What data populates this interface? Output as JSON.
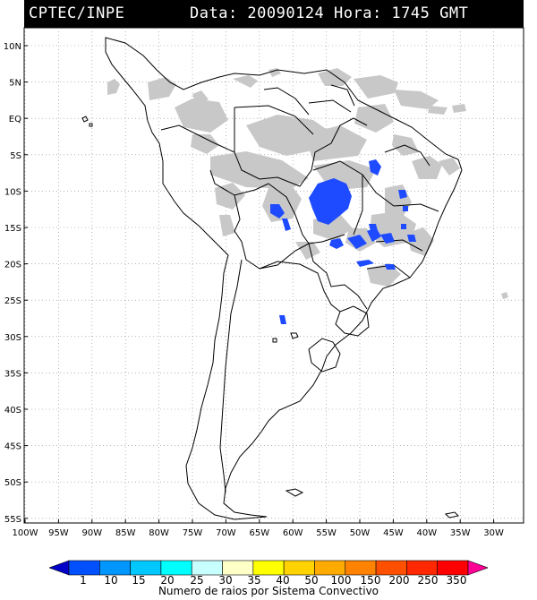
{
  "header": {
    "source": "CPTEC/INPE",
    "datetime": "Data: 20090124 Hora: 1745 GMT"
  },
  "map": {
    "lat_labels": [
      "10N",
      "5N",
      "EQ",
      "5S",
      "10S",
      "15S",
      "20S",
      "25S",
      "30S",
      "35S",
      "40S",
      "45S",
      "50S",
      "55S"
    ],
    "lon_labels": [
      "100W",
      "95W",
      "90W",
      "85W",
      "80W",
      "75W",
      "70W",
      "65W",
      "60W",
      "55W",
      "50W",
      "45W",
      "40W",
      "35W",
      "30W"
    ],
    "cloud_color": "#c8c8c8",
    "convective_color": "#1e4bff",
    "grid": "dotted"
  },
  "legend": {
    "values": [
      "1",
      "10",
      "15",
      "20",
      "25",
      "30",
      "35",
      "40",
      "50",
      "100",
      "150",
      "200",
      "250",
      "350"
    ],
    "colors": [
      "#0000c8",
      "#0050ff",
      "#0096ff",
      "#00c8ff",
      "#00ffff",
      "#c8ffff",
      "#ffffc8",
      "#ffff00",
      "#ffd200",
      "#ffaa00",
      "#ff8200",
      "#ff5000",
      "#ff2800",
      "#ff0000",
      "#ff0096"
    ],
    "title": "Numero de raios por Sistema Convectivo"
  }
}
